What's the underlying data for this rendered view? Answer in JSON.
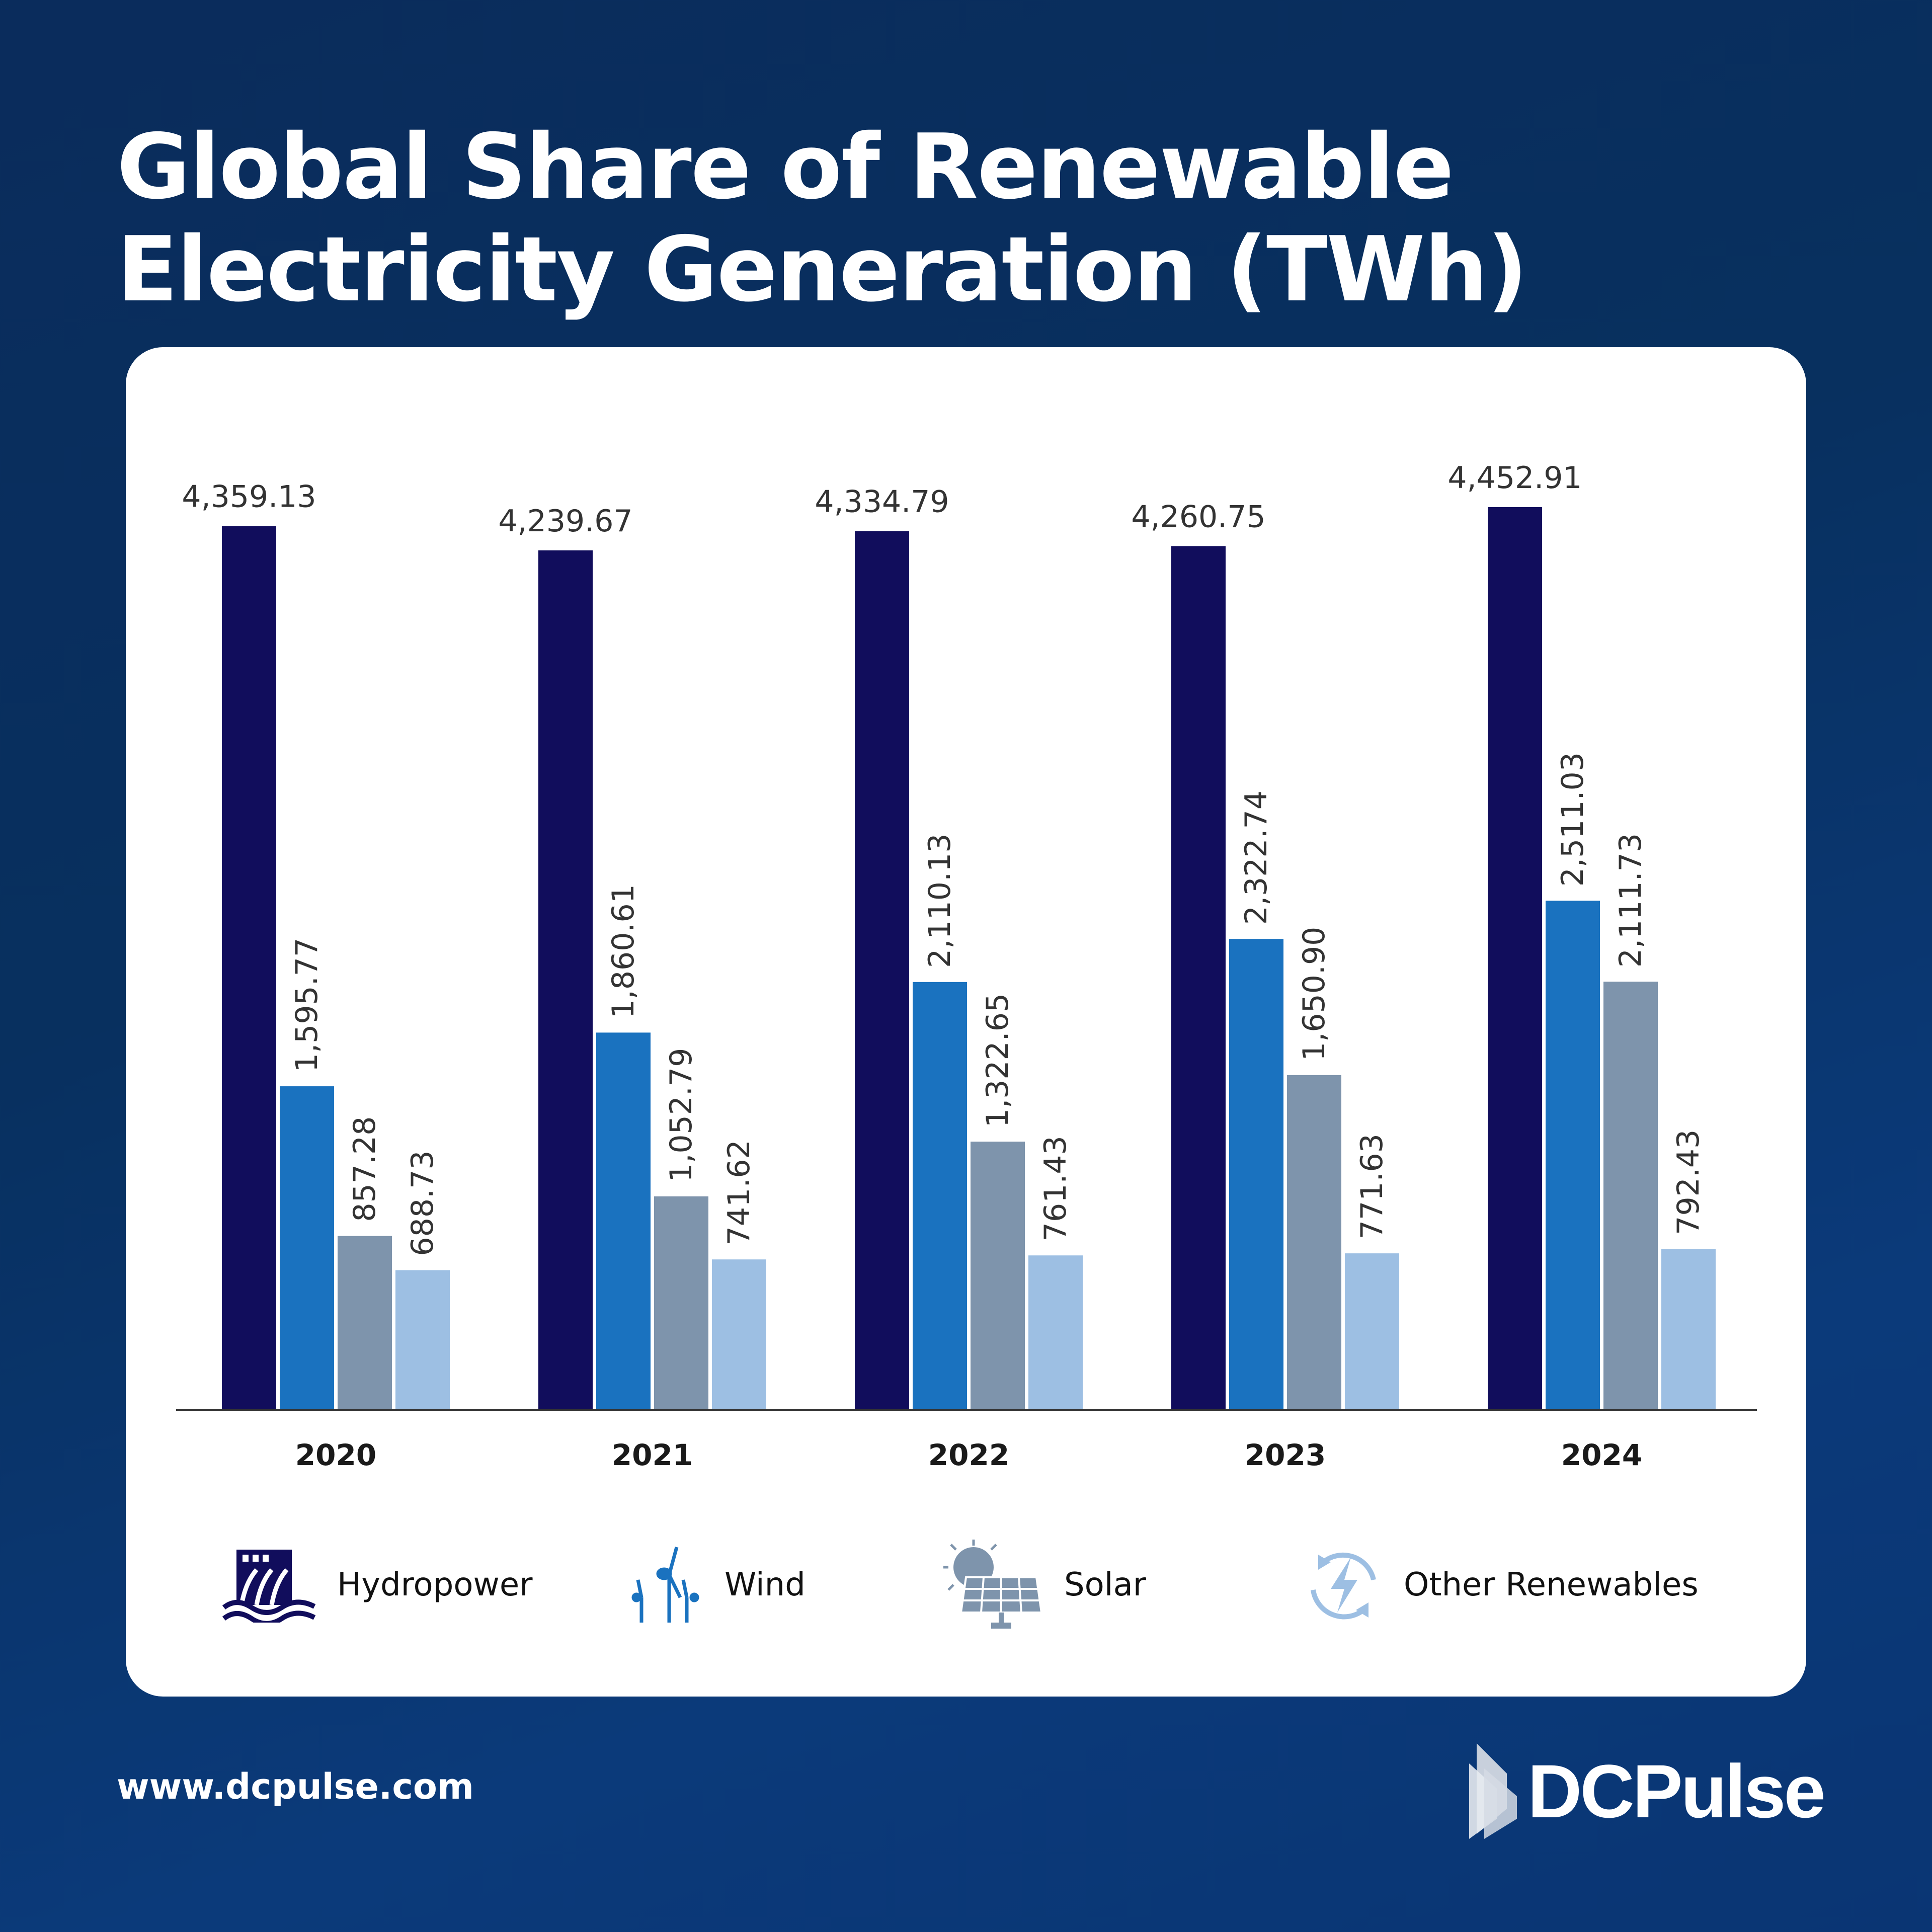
{
  "chart_data": {
    "type": "bar",
    "title": "Global Share of Renewable Electricity Generation (TWh)",
    "categories": [
      "2020",
      "2021",
      "2022",
      "2023",
      "2024"
    ],
    "series": [
      {
        "name": "Hydropower",
        "color": "#110d5c",
        "values": [
          4359.13,
          4239.67,
          4334.79,
          4260.75,
          4452.91
        ],
        "labels": [
          "4,359.13",
          "4,239.67",
          "4,334.79",
          "4,260.75",
          "4,452.91"
        ]
      },
      {
        "name": "Wind",
        "color": "#1a72bf",
        "values": [
          1595.77,
          1860.61,
          2110.13,
          2322.74,
          2511.03
        ],
        "labels": [
          "1,595.77",
          "1,860.61",
          "2,110.13",
          "2,322.74",
          "2,511.03"
        ]
      },
      {
        "name": "Solar",
        "color": "#7e94ac",
        "values": [
          857.28,
          1052.79,
          1322.65,
          1650.9,
          2111.73
        ],
        "labels": [
          "857.28",
          "1,052.79",
          "1,322.65",
          "1,650.90",
          "2,111.73"
        ]
      },
      {
        "name": "Other Renewables",
        "color": "#9dbfe3",
        "values": [
          688.73,
          741.62,
          761.43,
          771.63,
          792.43
        ],
        "labels": [
          "688.73",
          "741.62",
          "761.43",
          "771.63",
          "792.43"
        ]
      }
    ],
    "ylim": [
      0,
      5000
    ],
    "grid": false,
    "legend_placement": "bottom"
  },
  "legend": [
    {
      "label": "Hydropower",
      "icon": "hydropower-dam-icon"
    },
    {
      "label": "Wind",
      "icon": "wind-turbine-icon"
    },
    {
      "label": "Solar",
      "icon": "solar-panel-icon"
    },
    {
      "label": "Other Renewables",
      "icon": "renewable-cycle-icon"
    }
  ],
  "footer": {
    "url": "www.dcpulse.com",
    "brand": "DCPulse"
  }
}
